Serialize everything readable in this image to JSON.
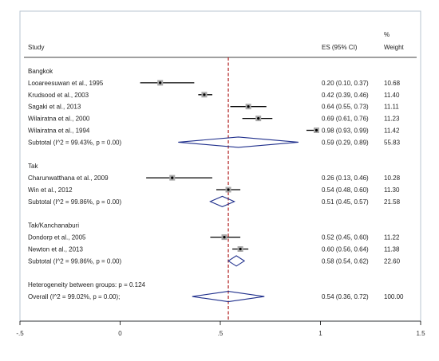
{
  "chart_data": {
    "type": "forest",
    "title": "",
    "xlim": [
      -0.5,
      1.5
    ],
    "x_ticks": [
      -0.5,
      0,
      0.5,
      1,
      1.5
    ],
    "x_tick_labels": [
      "-.5",
      "0",
      ".5",
      "1",
      "1.5"
    ],
    "reference_line": 0.54,
    "header": {
      "study": "Study",
      "es": "ES (95% CI)",
      "weight_line1": "%",
      "weight_line2": "Weight"
    },
    "rows": [
      {
        "kind": "group",
        "label": "Bangkok"
      },
      {
        "kind": "study",
        "label": "Looareesuwan et al., 1995",
        "es": 0.2,
        "lo": 0.1,
        "hi": 0.37,
        "es_text": "0.20 (0.10, 0.37)",
        "weight": 10.68,
        "weight_text": "10.68"
      },
      {
        "kind": "study",
        "label": "Krudsood et al., 2003",
        "es": 0.42,
        "lo": 0.39,
        "hi": 0.46,
        "es_text": "0.42 (0.39, 0.46)",
        "weight": 11.4,
        "weight_text": "11.40"
      },
      {
        "kind": "study",
        "label": "Sagaki et al., 2013",
        "es": 0.64,
        "lo": 0.55,
        "hi": 0.73,
        "es_text": "0.64 (0.55, 0.73)",
        "weight": 11.11,
        "weight_text": "11.11"
      },
      {
        "kind": "study",
        "label": "Wilairatna et al., 2000",
        "es": 0.69,
        "lo": 0.61,
        "hi": 0.76,
        "es_text": "0.69 (0.61, 0.76)",
        "weight": 11.23,
        "weight_text": "11.23"
      },
      {
        "kind": "study",
        "label": "Wilairatna et al., 1994",
        "es": 0.98,
        "lo": 0.93,
        "hi": 0.99,
        "es_text": "0.98 (0.93, 0.99)",
        "weight": 11.42,
        "weight_text": "11.42"
      },
      {
        "kind": "subtotal",
        "label": "Subtotal  (I^2 = 99.43%, p = 0.00)",
        "es": 0.59,
        "lo": 0.29,
        "hi": 0.89,
        "es_text": "0.59 (0.29, 0.89)",
        "weight": 55.83,
        "weight_text": "55.83"
      },
      {
        "kind": "blank"
      },
      {
        "kind": "group",
        "label": "Tak"
      },
      {
        "kind": "study",
        "label": "Charunwatthana et al., 2009",
        "es": 0.26,
        "lo": 0.13,
        "hi": 0.46,
        "es_text": "0.26 (0.13, 0.46)",
        "weight": 10.28,
        "weight_text": "10.28"
      },
      {
        "kind": "study",
        "label": "Win et al., 2012",
        "es": 0.54,
        "lo": 0.48,
        "hi": 0.6,
        "es_text": "0.54 (0.48, 0.60)",
        "weight": 11.3,
        "weight_text": "11.30"
      },
      {
        "kind": "subtotal",
        "label": "Subtotal  (I^2 = 99.86%, p = 0.00)",
        "es": 0.51,
        "lo": 0.45,
        "hi": 0.57,
        "es_text": "0.51 (0.45, 0.57)",
        "weight": 21.58,
        "weight_text": "21.58"
      },
      {
        "kind": "blank"
      },
      {
        "kind": "group",
        "label": "Tak/Kanchanaburi"
      },
      {
        "kind": "study",
        "label": "Dondorp et al., 2005",
        "es": 0.52,
        "lo": 0.45,
        "hi": 0.6,
        "es_text": "0.52 (0.45, 0.60)",
        "weight": 11.22,
        "weight_text": "11.22"
      },
      {
        "kind": "study",
        "label": "Newton et al., 2013",
        "es": 0.6,
        "lo": 0.56,
        "hi": 0.64,
        "es_text": "0.60 (0.56, 0.64)",
        "weight": 11.38,
        "weight_text": "11.38"
      },
      {
        "kind": "subtotal",
        "label": "Subtotal  (I^2 = 99.86%, p = 0.00)",
        "es": 0.58,
        "lo": 0.54,
        "hi": 0.62,
        "es_text": "0.58 (0.54, 0.62)",
        "weight": 22.6,
        "weight_text": "22.60"
      },
      {
        "kind": "blank"
      },
      {
        "kind": "note",
        "label": "Heterogeneity between groups: p = 0.124"
      },
      {
        "kind": "overall",
        "label": "Overall  (I^2 = 99.02%, p = 0.00);",
        "es": 0.54,
        "lo": 0.36,
        "hi": 0.72,
        "es_text": "0.54 (0.36, 0.72)",
        "weight": 100.0,
        "weight_text": "100.00"
      }
    ],
    "grid": false,
    "legend": "none"
  },
  "colors": {
    "background": "#ffffff",
    "frame": "#b8c6d0",
    "ci_line": "#000000",
    "marker_box": "#a9a9a9",
    "diamond": "#1f2f8c",
    "reference_line": "#b01c1c",
    "text": "#222222"
  }
}
